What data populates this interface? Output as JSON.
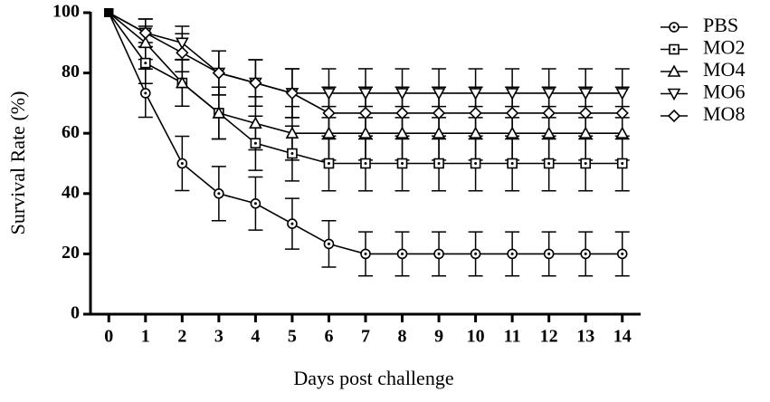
{
  "chart_data": {
    "type": "line",
    "x_label": "Days post challenge",
    "y_label": "Survival Rate (%)",
    "x": [
      0,
      1,
      2,
      3,
      4,
      5,
      6,
      7,
      8,
      9,
      10,
      11,
      12,
      13,
      14
    ],
    "xlim": [
      -0.5,
      14.5
    ],
    "xticks": [
      0,
      1,
      2,
      3,
      4,
      5,
      6,
      7,
      8,
      9,
      10,
      11,
      12,
      13,
      14
    ],
    "ylim": [
      0,
      100
    ],
    "yticks": [
      0,
      20,
      40,
      60,
      80,
      100
    ],
    "legend": "right",
    "series": [
      {
        "name": "PBS",
        "color": "#000000",
        "marker": "circle-dot",
        "values": [
          100,
          73.3,
          50,
          40,
          36.7,
          30,
          23.3,
          20,
          20,
          20,
          20,
          20,
          20,
          20,
          20
        ],
        "errors": [
          0,
          8,
          9,
          9,
          8.8,
          8.4,
          7.7,
          7.3,
          7.3,
          7.3,
          7.3,
          7.3,
          7.3,
          7.3,
          7.3
        ]
      },
      {
        "name": "MO2",
        "color": "#000000",
        "marker": "square-dot",
        "values": [
          100,
          83.3,
          76.7,
          66.7,
          56.7,
          53.3,
          50,
          50,
          50,
          50,
          50,
          50,
          50,
          50,
          50
        ],
        "errors": [
          0,
          6.8,
          7.7,
          8.6,
          9,
          9.1,
          9.1,
          9.1,
          9.1,
          9.1,
          9.1,
          9.1,
          9.1,
          9.1,
          9.1
        ]
      },
      {
        "name": "MO4",
        "color": "#000000",
        "marker": "triangle",
        "values": [
          100,
          90,
          76.7,
          66.7,
          63.3,
          60,
          60,
          60,
          60,
          60,
          60,
          60,
          60,
          60,
          60
        ],
        "errors": [
          0,
          5.5,
          7.7,
          8.6,
          8.8,
          8.9,
          8.9,
          8.9,
          8.9,
          8.9,
          8.9,
          8.9,
          8.9,
          8.9,
          8.9
        ]
      },
      {
        "name": "MO6",
        "color": "#000000",
        "marker": "triangle-down",
        "values": [
          100,
          93.3,
          90,
          80,
          76.7,
          73.3,
          73.3,
          73.3,
          73.3,
          73.3,
          73.3,
          73.3,
          73.3,
          73.3,
          73.3
        ],
        "errors": [
          0,
          4.6,
          5.5,
          7.3,
          7.7,
          8.1,
          8.1,
          8.1,
          8.1,
          8.1,
          8.1,
          8.1,
          8.1,
          8.1,
          8.1
        ]
      },
      {
        "name": "MO8",
        "color": "#000000",
        "marker": "diamond",
        "values": [
          100,
          93.3,
          86.7,
          80,
          76.7,
          73.3,
          66.7,
          66.7,
          66.7,
          66.7,
          66.7,
          66.7,
          66.7,
          66.7,
          66.7
        ],
        "errors": [
          0,
          4.6,
          6.3,
          7.3,
          7.7,
          8.1,
          8.6,
          8.6,
          8.6,
          8.6,
          8.6,
          8.6,
          8.6,
          8.6,
          8.6
        ]
      }
    ]
  }
}
